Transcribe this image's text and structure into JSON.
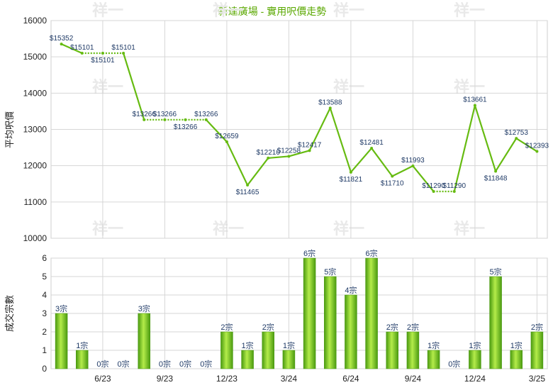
{
  "chart_data": [
    {
      "type": "line",
      "title": "新達廣場 - 實用呎價走勢",
      "ylabel": "平均呎價",
      "ylim": [
        10000,
        16000
      ],
      "yticks": [
        "16000",
        "15000",
        "14000",
        "13000",
        "12000",
        "11000",
        "10000"
      ],
      "series": [
        {
          "points": [
            {
              "i": 0,
              "v": 15352,
              "label": "$15352"
            },
            {
              "i": 1,
              "v": 15101,
              "label": "$15101"
            },
            {
              "i": 2,
              "v": 15101,
              "label": "$15101"
            },
            {
              "i": 3,
              "v": 15101,
              "label": "$15101"
            },
            {
              "i": 4,
              "v": 13266,
              "label": "$13266"
            },
            {
              "i": 5,
              "v": 13266,
              "label": "$13266"
            },
            {
              "i": 6,
              "v": 13266,
              "label": "$13266"
            },
            {
              "i": 7,
              "v": 13266,
              "label": "$13266"
            },
            {
              "i": 8,
              "v": 12659,
              "label": "$12659"
            },
            {
              "i": 9,
              "v": 11465,
              "label": "$11465"
            },
            {
              "i": 10,
              "v": 12210,
              "label": "$12210"
            },
            {
              "i": 11,
              "v": 12258,
              "label": "$12258"
            },
            {
              "i": 12,
              "v": 12417,
              "label": "$12417"
            },
            {
              "i": 13,
              "v": 13588,
              "label": "$13588"
            },
            {
              "i": 14,
              "v": 11821,
              "label": "$11821"
            },
            {
              "i": 15,
              "v": 12481,
              "label": "$12481"
            },
            {
              "i": 16,
              "v": 11710,
              "label": "$11710"
            },
            {
              "i": 17,
              "v": 11993,
              "label": "$11993"
            },
            {
              "i": 18,
              "v": 11290,
              "label": "$11290"
            },
            {
              "i": 19,
              "v": 11290,
              "label": "$11290"
            },
            {
              "i": 20,
              "v": 13661,
              "label": "$13661"
            },
            {
              "i": 21,
              "v": 11848,
              "label": "$11848"
            },
            {
              "i": 22,
              "v": 12753,
              "label": "$12753"
            },
            {
              "i": 23,
              "v": 12393,
              "label": "$12393"
            }
          ]
        }
      ],
      "dotted_segments": [
        [
          1,
          3
        ],
        [
          4,
          7
        ],
        [
          18,
          19
        ]
      ],
      "color": "#66bb11"
    },
    {
      "type": "bar",
      "ylabel": "成交宗數",
      "ylim": [
        0,
        6
      ],
      "yticks": [
        "6",
        "5",
        "4",
        "3",
        "2",
        "1",
        "0"
      ],
      "values": [
        3,
        1,
        0,
        0,
        3,
        0,
        0,
        0,
        2,
        1,
        2,
        1,
        6,
        5,
        4,
        6,
        2,
        2,
        1,
        0,
        1,
        5,
        1,
        2
      ],
      "labels": [
        "3宗",
        "1宗",
        "0宗",
        "0宗",
        "3宗",
        "0宗",
        "0宗",
        "0宗",
        "2宗",
        "1宗",
        "2宗",
        "1宗",
        "6宗",
        "5宗",
        "4宗",
        "6宗",
        "2宗",
        "2宗",
        "1宗",
        "0宗",
        "1宗",
        "5宗",
        "1宗",
        "2宗"
      ],
      "xticks": [
        {
          "i": 2,
          "label": "6/23"
        },
        {
          "i": 5,
          "label": "9/23"
        },
        {
          "i": 8,
          "label": "12/23"
        },
        {
          "i": 11,
          "label": "3/24"
        },
        {
          "i": 14,
          "label": "6/24"
        },
        {
          "i": 17,
          "label": "9/24"
        },
        {
          "i": 20,
          "label": "12/24"
        },
        {
          "i": 23,
          "label": "3/25"
        }
      ],
      "colors": {
        "bar_light": "#b4ec4a",
        "bar_dark": "#4a9a10"
      }
    }
  ],
  "watermark": "祥一"
}
